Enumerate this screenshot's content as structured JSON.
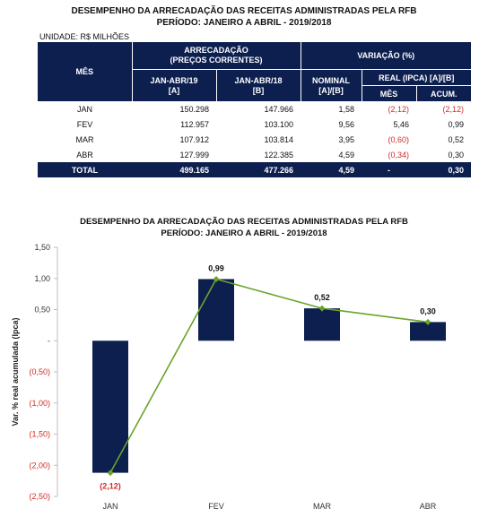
{
  "header": {
    "title1": "DESEMPENHO DA ARRECADAÇÃO DAS RECEITAS ADMINISTRADAS PELA RFB",
    "title2": "PERÍODO: JANEIRO A ABRIL - 2019/2018",
    "unit": "UNIDADE: R$ MILHÕES"
  },
  "table": {
    "col_mes": "MÊS",
    "col_arrecadacao": "ARRECADAÇÃO",
    "col_arrecadacao_sub": "(PREÇOS CORRENTES)",
    "col_variacao": "VARIAÇÃO (%)",
    "col_jan19_a": "JAN-ABR/19",
    "col_jan19_b": "[A]",
    "col_jan18_a": "JAN-ABR/18",
    "col_jan18_b": "[B]",
    "col_nominal_a": "NOMINAL",
    "col_nominal_b": "[A]/[B]",
    "col_real": "REAL (IPCA) [A]/[B]",
    "col_mes2": "MÊS",
    "col_acum": "ACUM.",
    "rows": [
      {
        "mes": "JAN",
        "a": "150.298",
        "b": "147.966",
        "nominal": "1,58",
        "real_mes": "(2,12)",
        "acum": "(2,12)"
      },
      {
        "mes": "FEV",
        "a": "112.957",
        "b": "103.100",
        "nominal": "9,56",
        "real_mes": "5,46",
        "acum": "0,99"
      },
      {
        "mes": "MAR",
        "a": "107.912",
        "b": "103.814",
        "nominal": "3,95",
        "real_mes": "(0,60)",
        "acum": "0,52"
      },
      {
        "mes": "ABR",
        "a": "127.999",
        "b": "122.385",
        "nominal": "4,59",
        "real_mes": "(0,34)",
        "acum": "0,30"
      }
    ],
    "total": {
      "mes": "TOTAL",
      "a": "499.165",
      "b": "477.266",
      "nominal": "4,59",
      "real_mes": "-",
      "acum": "0,30"
    }
  },
  "chart_data": {
    "type": "bar",
    "title": "DESEMPENHO DA ARRECADAÇÃO DAS RECEITAS ADMINISTRADAS PELA RFB",
    "subtitle": "PERÍODO: JANEIRO A ABRIL - 2019/2018",
    "ylabel": "Var. % real acumulada (Ipca)",
    "xlabel": "",
    "categories": [
      "JAN",
      "FEV",
      "MAR",
      "ABR"
    ],
    "values": [
      -2.12,
      0.99,
      0.52,
      0.3
    ],
    "data_labels": [
      "(2,12)",
      "0,99",
      "0,52",
      "0,30"
    ],
    "line_overlay": true,
    "ylim": [
      -2.5,
      1.5
    ],
    "yticks": [
      "1,50",
      "1,00",
      "0,50",
      "-",
      "(0,50)",
      "(1,00)",
      "(1,50)",
      "(2,00)",
      "(2,50)"
    ],
    "grid": false,
    "colors": {
      "bar": "#0d1f4f",
      "line": "#6aa32a",
      "negative_label": "#d22a2a"
    }
  }
}
